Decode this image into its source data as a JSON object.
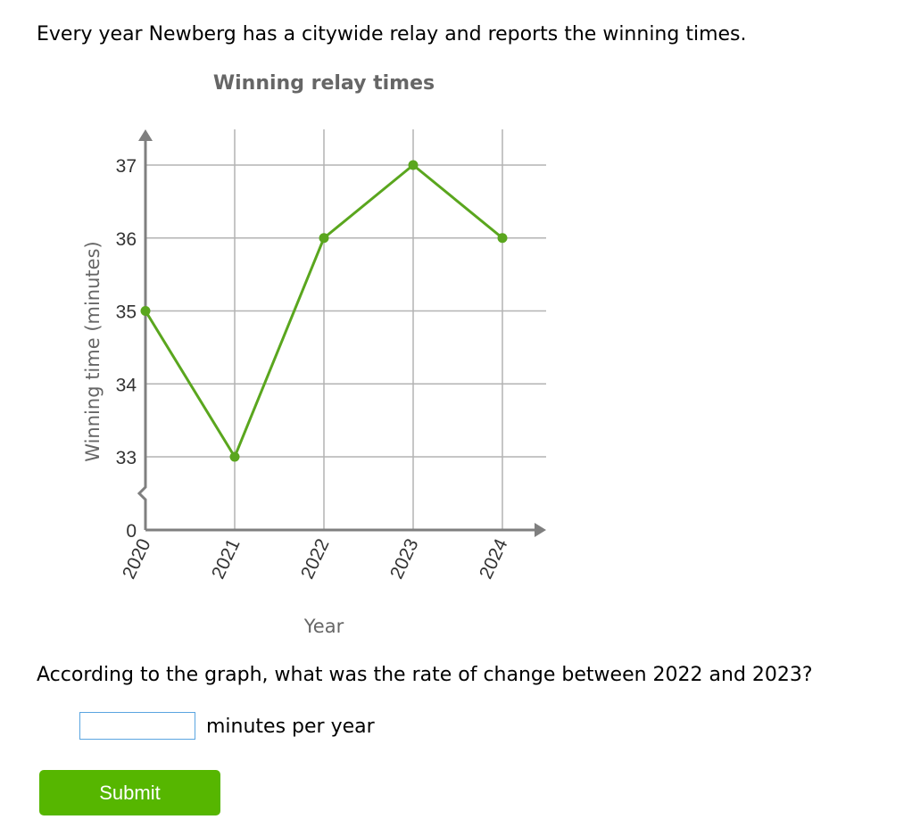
{
  "question": {
    "intro": "Every year Newberg has a citywide relay and reports the winning times.",
    "prompt": "According to the graph, what was the rate of change between 2022 and 2023?",
    "answer_value": "",
    "unit_label": "minutes per year",
    "submit_label": "Submit"
  },
  "colors": {
    "line": "#5aa61e",
    "axis": "#7f7f7f",
    "grid": "#b3b3b3",
    "button": "#56b600",
    "input_border": "#5aa5e0"
  },
  "chart_data": {
    "type": "line",
    "title": "Winning relay times",
    "xlabel": "Year",
    "ylabel": "Winning time (minutes)",
    "x": [
      "2020",
      "2021",
      "2022",
      "2023",
      "2024"
    ],
    "values": [
      35,
      33,
      36,
      37,
      36
    ],
    "yticks": [
      "0",
      "33",
      "34",
      "35",
      "36",
      "37"
    ],
    "ylim": [
      33,
      37
    ],
    "axis_break": true,
    "grid": true
  }
}
